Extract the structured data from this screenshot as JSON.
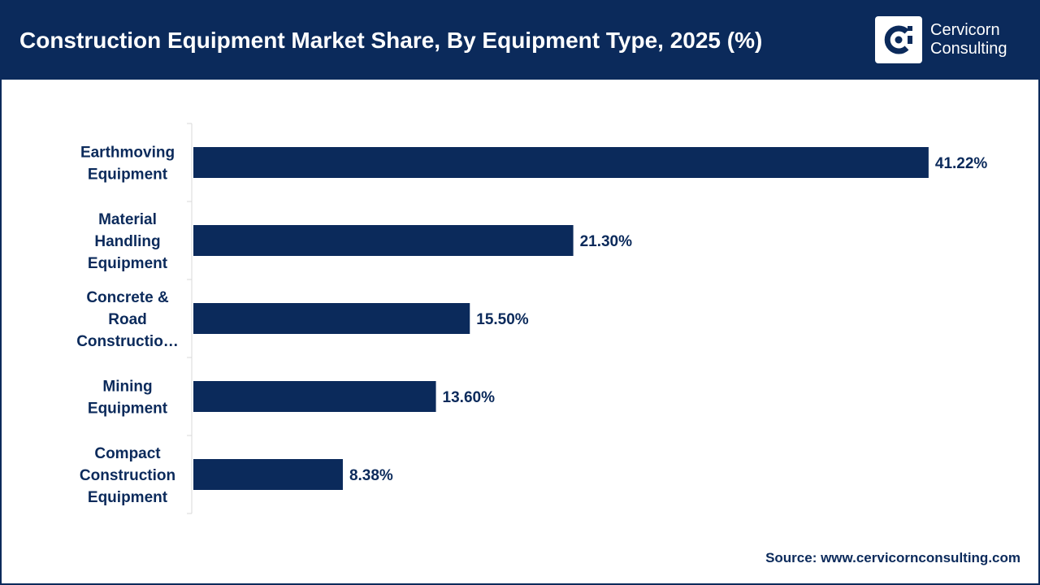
{
  "header": {
    "title": "Construction Equipment Market Share, By Equipment Type, 2025 (%)",
    "logo": {
      "line1": "Cervicorn",
      "line2": "Consulting",
      "icon": "cervicorn-logo-icon",
      "background_color": "#ffffff"
    },
    "background_color": "#0b2a5b"
  },
  "chart_data": {
    "type": "bar",
    "orientation": "horizontal",
    "categories": [
      [
        "Earthmoving",
        "Equipment"
      ],
      [
        "Material",
        "Handling",
        "Equipment"
      ],
      [
        "Concrete &",
        "Road",
        "Constructio…"
      ],
      [
        "Mining",
        "Equipment"
      ],
      [
        "Compact",
        "Construction",
        "Equipment"
      ]
    ],
    "values": [
      41.22,
      21.3,
      15.5,
      13.6,
      8.38
    ],
    "value_labels": [
      "41.22%",
      "21.30%",
      "15.50%",
      "13.60%",
      "8.38%"
    ],
    "xlim": [
      0,
      42
    ],
    "bar_color": "#0b2a5b",
    "grid": false,
    "legend": "none"
  },
  "footer": {
    "source": "Source: www.cervicornconsulting.com"
  }
}
